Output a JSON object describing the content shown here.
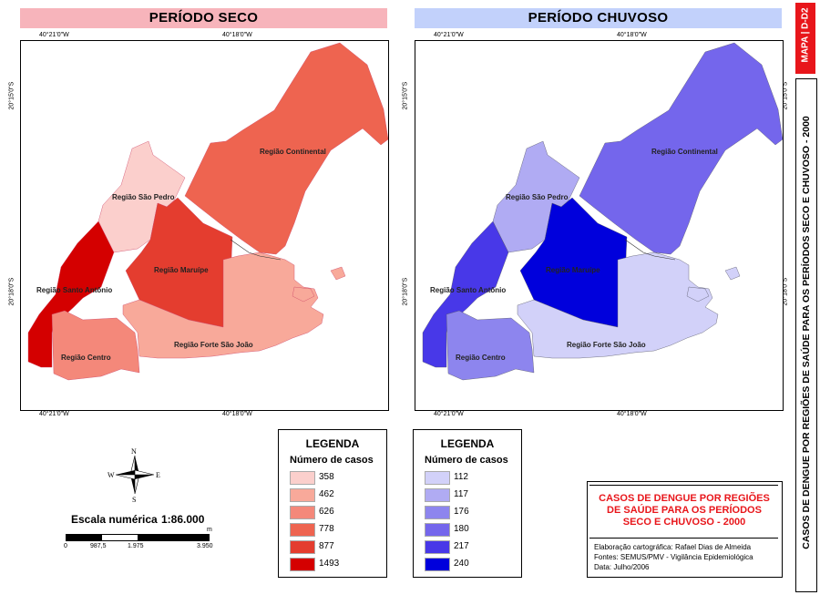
{
  "left_panel": {
    "title": "PERÍODO SECO",
    "header_color": "#f7b4bb",
    "coords": {
      "top_a": "40°21'0\"W",
      "top_b": "40°18'0\"W",
      "bottom_a": "40°21'0\"W",
      "bottom_b": "40°18'0\"W",
      "lat_a": "20°15'0\"S",
      "lat_b": "20°18'0\"S"
    },
    "regions": {
      "continental": "Região Continental",
      "sao_pedro": "Região São Pedro",
      "maruipe": "Região Maruípe",
      "santo_antonio": "Região Santo Antônio",
      "centro": "Região Centro",
      "forte": "Região Forte São João"
    },
    "legend": {
      "title": "LEGENDA",
      "subtitle": "Número de casos",
      "items": [
        {
          "label": "358",
          "color": "#fbcfcc"
        },
        {
          "label": "462",
          "color": "#f8a99a"
        },
        {
          "label": "626",
          "color": "#f4887a"
        },
        {
          "label": "778",
          "color": "#ee6450"
        },
        {
          "label": "877",
          "color": "#e43d2f"
        },
        {
          "label": "1493",
          "color": "#d40000"
        }
      ]
    }
  },
  "right_panel": {
    "title": "PERÍODO CHUVOSO",
    "header_color": "#c2d1fb",
    "coords": {
      "top_a": "40°21'0\"W",
      "top_b": "40°18'0\"W",
      "bottom_a": "40°21'0\"W",
      "bottom_b": "40°18'0\"W",
      "lat_a": "20°15'0\"S",
      "lat_b": "20°18'0\"S"
    },
    "regions": {
      "continental": "Região Continental",
      "sao_pedro": "Região São Pedro",
      "maruipe": "Região Maruípe",
      "santo_antonio": "Região Santo Antônio",
      "centro": "Região Centro",
      "forte": "Região Forte São João"
    },
    "legend": {
      "title": "LEGENDA",
      "subtitle": "Número de casos",
      "items": [
        {
          "label": "112",
          "color": "#d2d1f9"
        },
        {
          "label": "117",
          "color": "#b0abf3"
        },
        {
          "label": "176",
          "color": "#8d85ee"
        },
        {
          "label": "180",
          "color": "#7466ec"
        },
        {
          "label": "217",
          "color": "#4838e8"
        },
        {
          "label": "240",
          "color": "#0000dc"
        }
      ]
    }
  },
  "compass": {
    "n": "N",
    "s": "S",
    "e": "E",
    "w": "W"
  },
  "scale": {
    "label": "Escala numérica",
    "value": "1:86.000",
    "unit": "m",
    "ticks": [
      "0",
      "987,5",
      "1.975",
      "3.950"
    ]
  },
  "info": {
    "title": "CASOS DE DENGUE POR REGIÕES DE SAÚDE PARA OS PERÍODOS SECO E CHUVOSO - 2000",
    "title_color": "#e8161b",
    "credits": [
      "Elaboração cartográfica: Rafael Dias de Almeida",
      "Fontes: SEMUS/PMV - Vigilância Epidemiológica",
      "Data: Julho/2006"
    ]
  },
  "side": {
    "map_id": "MAPA | D-D2",
    "vertical_title": "CASOS DE DENGUE POR REGIÕES DE SAÚDE PARA OS PERÍODOS SECO E CHUVOSO - 2000",
    "map_id_color": "#e8161b"
  }
}
